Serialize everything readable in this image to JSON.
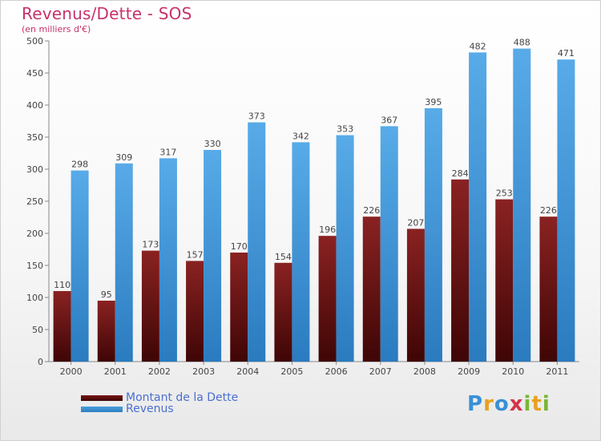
{
  "title": "Revenus/Dette - SOS",
  "subtitle": "(en milliers d'€)",
  "logo": [
    "P",
    "r",
    "o",
    "x",
    "i",
    "t",
    "i"
  ],
  "logo_colors": [
    "#3a8fd6",
    "#e8a020",
    "#3a8fd6",
    "#d6334a",
    "#7ab534",
    "#e8a020",
    "#7ab534"
  ],
  "colors": {
    "dette": "#7a1414",
    "revenus": "#4a9fe0",
    "axis": "#888888",
    "grid": "#dddddd",
    "text": "#444444"
  },
  "chart_data": {
    "type": "bar",
    "categories": [
      "2000",
      "2001",
      "2002",
      "2003",
      "2004",
      "2005",
      "2006",
      "2007",
      "2008",
      "2009",
      "2010",
      "2011"
    ],
    "series": [
      {
        "name": "Montant de la Dette",
        "values": [
          110,
          95,
          173,
          157,
          170,
          154,
          196,
          226,
          207,
          284,
          253,
          226
        ]
      },
      {
        "name": "Revenus",
        "values": [
          298,
          309,
          317,
          330,
          373,
          342,
          353,
          367,
          395,
          482,
          488,
          471
        ]
      }
    ],
    "ylim": [
      0,
      500
    ],
    "yticks": [
      0,
      50,
      100,
      150,
      200,
      250,
      300,
      350,
      400,
      450,
      500
    ],
    "grid": false,
    "legend": "bottom-left"
  }
}
